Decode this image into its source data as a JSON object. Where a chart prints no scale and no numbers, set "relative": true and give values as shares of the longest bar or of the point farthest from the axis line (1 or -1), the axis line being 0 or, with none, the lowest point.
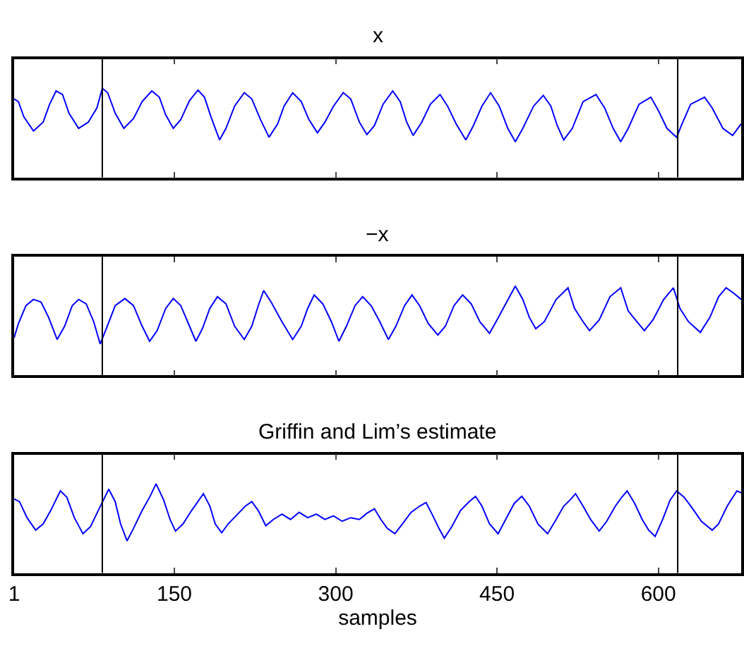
{
  "chart_data": [
    {
      "type": "line",
      "title": "x",
      "relative": true,
      "tick_labels": false,
      "xlim": [
        1,
        677
      ],
      "xticks": [
        1,
        150,
        300,
        450,
        600
      ],
      "ref_lines": [
        {
          "axis": "x",
          "value": 83,
          "color": "#000000"
        },
        {
          "axis": "x",
          "value": 618,
          "color": "#000000"
        }
      ],
      "x": [
        1,
        5,
        10,
        19,
        28,
        34,
        40,
        46,
        52,
        61,
        70,
        78,
        83,
        88,
        95,
        103,
        112,
        120,
        129,
        136,
        142,
        149,
        156,
        164,
        172,
        178,
        184,
        192,
        198,
        206,
        215,
        222,
        230,
        238,
        246,
        252,
        260,
        268,
        275,
        283,
        290,
        298,
        307,
        314,
        322,
        329,
        336,
        344,
        353,
        360,
        366,
        372,
        380,
        388,
        397,
        404,
        412,
        421,
        428,
        436,
        444,
        452,
        460,
        467,
        474,
        484,
        493,
        500,
        506,
        512,
        520,
        530,
        542,
        550,
        558,
        565,
        572,
        582,
        593,
        600,
        608,
        617,
        622,
        630,
        643,
        650,
        660,
        669,
        677
      ],
      "series": [
        {
          "color": "#0000ff",
          "values": [
            0.88,
            0.85,
            0.68,
            0.52,
            0.62,
            0.82,
            0.97,
            0.93,
            0.72,
            0.55,
            0.62,
            0.78,
            1.0,
            0.95,
            0.72,
            0.55,
            0.66,
            0.85,
            0.97,
            0.9,
            0.7,
            0.55,
            0.65,
            0.86,
            0.98,
            0.9,
            0.68,
            0.42,
            0.55,
            0.8,
            0.95,
            0.88,
            0.65,
            0.45,
            0.6,
            0.8,
            0.95,
            0.85,
            0.65,
            0.5,
            0.62,
            0.8,
            0.95,
            0.88,
            0.62,
            0.48,
            0.58,
            0.82,
            0.97,
            0.85,
            0.62,
            0.47,
            0.62,
            0.82,
            0.93,
            0.8,
            0.6,
            0.42,
            0.58,
            0.8,
            0.95,
            0.8,
            0.55,
            0.4,
            0.55,
            0.8,
            0.92,
            0.8,
            0.58,
            0.42,
            0.55,
            0.85,
            0.93,
            0.78,
            0.55,
            0.4,
            0.55,
            0.82,
            0.9,
            0.75,
            0.55,
            0.45,
            0.6,
            0.82,
            0.9,
            0.78,
            0.55,
            0.47,
            0.6
          ]
        }
      ]
    },
    {
      "type": "line",
      "title": "−x",
      "relative": true,
      "tick_labels": false,
      "xlim": [
        1,
        677
      ],
      "xticks": [
        1,
        150,
        300,
        450,
        600
      ],
      "ref_lines": [
        {
          "axis": "x",
          "value": 83,
          "color": "#000000"
        },
        {
          "axis": "x",
          "value": 618,
          "color": "#000000"
        }
      ],
      "x": [
        1,
        5,
        12,
        19,
        26,
        33,
        41,
        48,
        55,
        61,
        68,
        75,
        81,
        86,
        95,
        104,
        112,
        120,
        127,
        134,
        142,
        149,
        156,
        163,
        170,
        176,
        183,
        190,
        198,
        206,
        215,
        222,
        228,
        233,
        240,
        250,
        260,
        268,
        274,
        280,
        288,
        296,
        303,
        310,
        318,
        325,
        333,
        341,
        349,
        356,
        364,
        371,
        378,
        386,
        395,
        402,
        410,
        418,
        426,
        434,
        443,
        450,
        458,
        467,
        474,
        480,
        486,
        494,
        505,
        516,
        522,
        530,
        536,
        545,
        555,
        565,
        572,
        580,
        587,
        595,
        605,
        614,
        620,
        628,
        639,
        648,
        656,
        663,
        670,
        677
      ],
      "series": [
        {
          "color": "#0000ff",
          "values": [
            0.42,
            0.58,
            0.78,
            0.85,
            0.82,
            0.65,
            0.4,
            0.55,
            0.78,
            0.85,
            0.8,
            0.6,
            0.35,
            0.5,
            0.78,
            0.86,
            0.78,
            0.55,
            0.38,
            0.5,
            0.75,
            0.86,
            0.78,
            0.58,
            0.38,
            0.52,
            0.75,
            0.88,
            0.8,
            0.55,
            0.4,
            0.55,
            0.78,
            0.95,
            0.82,
            0.6,
            0.4,
            0.55,
            0.75,
            0.9,
            0.8,
            0.6,
            0.38,
            0.55,
            0.78,
            0.88,
            0.78,
            0.6,
            0.4,
            0.55,
            0.78,
            0.9,
            0.78,
            0.58,
            0.45,
            0.55,
            0.78,
            0.9,
            0.8,
            0.6,
            0.47,
            0.62,
            0.8,
            1.0,
            0.85,
            0.65,
            0.52,
            0.6,
            0.85,
            0.98,
            0.75,
            0.6,
            0.5,
            0.62,
            0.88,
            0.98,
            0.72,
            0.6,
            0.5,
            0.62,
            0.85,
            0.98,
            0.75,
            0.6,
            0.48,
            0.65,
            0.88,
            0.98,
            0.92,
            0.85
          ]
        }
      ]
    },
    {
      "type": "line",
      "title": "Griffin and Lim’s estimate",
      "xlabel": "samples",
      "relative": true,
      "tick_labels": "x",
      "xlim": [
        1,
        677
      ],
      "xticks": [
        1,
        150,
        300,
        450,
        600
      ],
      "ref_lines": [
        {
          "axis": "x",
          "value": 83,
          "color": "#000000"
        },
        {
          "axis": "x",
          "value": 618,
          "color": "#000000"
        }
      ],
      "x": [
        1,
        6,
        13,
        21,
        28,
        35,
        44,
        50,
        57,
        65,
        72,
        80,
        89,
        95,
        100,
        106,
        112,
        120,
        127,
        133,
        140,
        146,
        151,
        158,
        166,
        177,
        183,
        188,
        194,
        200,
        208,
        216,
        222,
        228,
        235,
        242,
        250,
        258,
        266,
        274,
        282,
        290,
        298,
        306,
        314,
        322,
        329,
        336,
        342,
        348,
        355,
        362,
        370,
        378,
        384,
        390,
        396,
        401,
        408,
        416,
        424,
        430,
        436,
        443,
        451,
        458,
        466,
        473,
        480,
        488,
        497,
        504,
        512,
        518,
        523,
        530,
        537,
        545,
        552,
        560,
        566,
        571,
        578,
        585,
        591,
        597,
        604,
        611,
        617,
        624,
        632,
        640,
        650,
        656,
        664,
        673,
        677
      ],
      "series": [
        {
          "color": "#0000ff",
          "values": [
            0.83,
            0.8,
            0.62,
            0.48,
            0.55,
            0.7,
            0.92,
            0.85,
            0.62,
            0.44,
            0.52,
            0.72,
            0.94,
            0.8,
            0.55,
            0.36,
            0.5,
            0.7,
            0.85,
            1.0,
            0.82,
            0.6,
            0.47,
            0.55,
            0.7,
            0.89,
            0.75,
            0.55,
            0.45,
            0.55,
            0.65,
            0.75,
            0.8,
            0.7,
            0.53,
            0.6,
            0.66,
            0.6,
            0.68,
            0.62,
            0.66,
            0.6,
            0.64,
            0.58,
            0.62,
            0.6,
            0.67,
            0.72,
            0.6,
            0.5,
            0.44,
            0.55,
            0.68,
            0.75,
            0.79,
            0.65,
            0.5,
            0.39,
            0.52,
            0.7,
            0.8,
            0.86,
            0.75,
            0.55,
            0.44,
            0.6,
            0.78,
            0.86,
            0.75,
            0.55,
            0.44,
            0.58,
            0.75,
            0.82,
            0.89,
            0.75,
            0.6,
            0.47,
            0.58,
            0.75,
            0.85,
            0.92,
            0.78,
            0.6,
            0.48,
            0.41,
            0.6,
            0.82,
            0.92,
            0.85,
            0.72,
            0.58,
            0.48,
            0.55,
            0.75,
            0.92,
            0.9
          ]
        }
      ]
    }
  ]
}
